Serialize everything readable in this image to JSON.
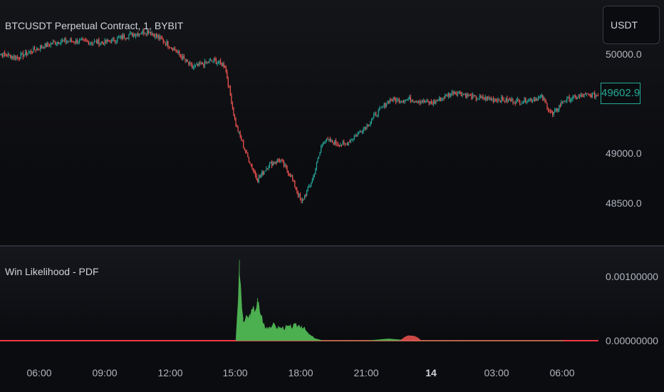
{
  "chart": {
    "symbol_title": "BTCUSDT Perpetual Contract, 1, BYBIT",
    "currency": "USDT",
    "last_price": "49602.9",
    "price_labels": [
      "50000.0",
      "49000.0",
      "48500.0"
    ],
    "indicator_title": "Win Likelihood - PDF",
    "indicator_labels": [
      "0.00100000",
      "0.00000000"
    ],
    "time_labels": [
      "06:00",
      "09:00",
      "12:00",
      "15:00",
      "18:00",
      "21:00",
      "14",
      "03:00",
      "06:00"
    ],
    "bold_time_label": "14",
    "colors": {
      "up": "#26a69a",
      "down": "#ef5350",
      "pdf_fill": "#4caf50",
      "pdf_secondary": "#ef5350",
      "baseline": "#f23645",
      "last_price": "#22ab94"
    }
  },
  "chart_data": [
    {
      "type": "line",
      "title": "BTCUSDT Perpetual Contract, 1, BYBIT",
      "x": [
        "04:00",
        "05:00",
        "06:00",
        "07:00",
        "08:00",
        "09:00",
        "10:00",
        "11:00",
        "12:00",
        "13:00",
        "14:00",
        "14:30",
        "15:00",
        "15:30",
        "16:00",
        "16:30",
        "17:00",
        "17:30",
        "18:00",
        "18:30",
        "19:00",
        "20:00",
        "21:00",
        "22:00",
        "23:00",
        "00:00",
        "01:00",
        "02:00",
        "03:00",
        "04:00",
        "05:00",
        "05:30",
        "06:00",
        "07:00",
        "08:00"
      ],
      "series": [
        {
          "values": [
            50030,
            49980,
            50080,
            50150,
            50140,
            50130,
            50200,
            50250,
            50100,
            49880,
            49950,
            49900,
            49300,
            49000,
            48750,
            48900,
            48950,
            48800,
            48520,
            48750,
            49150,
            49100,
            49300,
            49550,
            49560,
            49520,
            49640,
            49570,
            49560,
            49540,
            49580,
            49400,
            49550,
            49600,
            49603
          ]
        }
      ],
      "ylim": [
        48350,
        50350
      ],
      "yticks": [
        48500,
        49000,
        50000
      ]
    },
    {
      "type": "area",
      "title": "Win Likelihood - PDF",
      "x": [
        "15:00",
        "15:10",
        "15:20",
        "15:40",
        "16:00",
        "16:20",
        "16:40",
        "17:00",
        "17:30",
        "18:00",
        "18:20",
        "18:40",
        "19:00",
        "21:00",
        "22:00",
        "23:00",
        "00:00",
        "06:00"
      ],
      "series": [
        {
          "name": "",
          "values": [
            0.0,
            0.0011,
            0.0003,
            0.0004,
            0.0006,
            0.0002,
            0.00025,
            0.0002,
            0.00022,
            0.00025,
            0.0001,
            3e-05,
            0.0,
            0.0,
            3e-05,
            0.0,
            0.0,
            0.0
          ]
        }
      ],
      "ylim": [
        0,
        0.00112
      ],
      "yticks": [
        0,
        0.001
      ]
    }
  ]
}
